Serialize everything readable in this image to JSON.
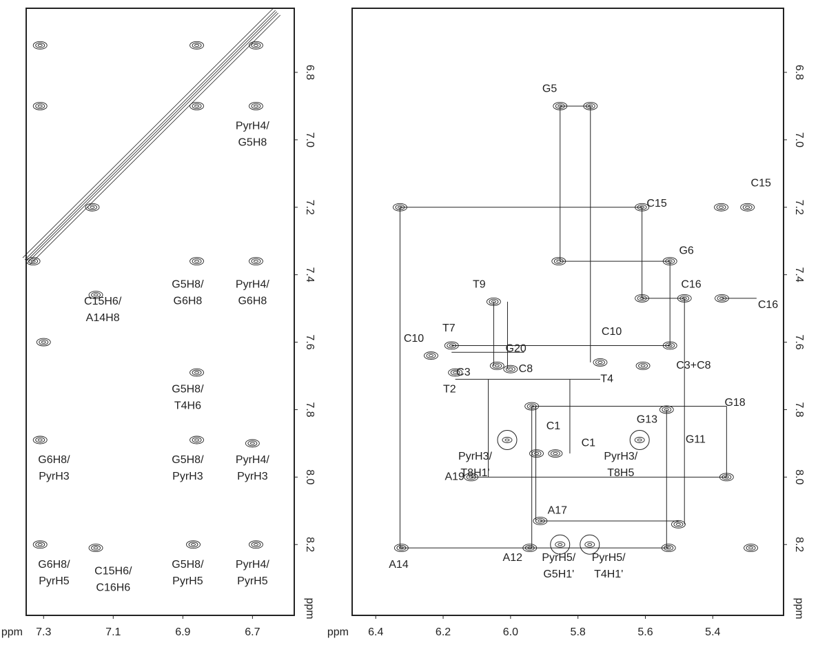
{
  "chart_data": [
    {
      "type": "scatter",
      "xlabel": "ppm",
      "ylabel": "ppm",
      "xlim": [
        7.35,
        6.58
      ],
      "ylim": [
        8.41,
        6.61
      ],
      "xticks": [
        7.3,
        7.1,
        6.9,
        6.7
      ],
      "yticks": [
        6.8,
        {
          "value": 7,
          "label": "7.0"
        },
        7.2,
        7.4,
        7.6,
        7.8,
        {
          "value": 8,
          "label": "8.0"
        },
        8.2
      ],
      "diagonal": {
        "x": [
          7.35,
          6.63
        ],
        "y": [
          7.36,
          6.62
        ]
      },
      "x": [
        7.31,
        7.31,
        6.86,
        6.69,
        6.69,
        6.86,
        6.69,
        7.15,
        7.3,
        6.86,
        6.86,
        6.7,
        7.31,
        7.31,
        7.15,
        6.87,
        6.69,
        6.86,
        7.16,
        7.33
      ],
      "y": [
        6.72,
        6.9,
        6.72,
        6.72,
        6.9,
        7.36,
        7.36,
        7.46,
        7.6,
        7.69,
        7.89,
        7.9,
        7.89,
        8.2,
        8.21,
        8.2,
        8.2,
        6.9,
        7.2,
        7.36
      ],
      "annotations": [
        {
          "text": [
            "PyrH4/",
            "G5H8"
          ],
          "x": 6.7,
          "y": 6.96
        },
        {
          "text": [
            "G5H8/",
            "G6H8"
          ],
          "x": 6.886,
          "y": 7.43
        },
        {
          "text": [
            "PyrH4/",
            "G6H8"
          ],
          "x": 6.7,
          "y": 7.43
        },
        {
          "text": [
            "C15H6/",
            "A14H8"
          ],
          "x": 7.13,
          "y": 7.48
        },
        {
          "text": [
            "G5H8/",
            "T4H6"
          ],
          "x": 6.886,
          "y": 7.74
        },
        {
          "text": [
            "G6H8/",
            "PyrH3"
          ],
          "x": 7.27,
          "y": 7.95
        },
        {
          "text": [
            "G5H8/",
            "PyrH3"
          ],
          "x": 6.886,
          "y": 7.95
        },
        {
          "text": [
            "PyrH4/",
            "PyrH3"
          ],
          "x": 6.7,
          "y": 7.95
        },
        {
          "text": [
            "G6H8/",
            "PyrH5"
          ],
          "x": 7.27,
          "y": 8.26
        },
        {
          "text": [
            "C15H6/",
            "C16H6"
          ],
          "x": 7.1,
          "y": 8.28
        },
        {
          "text": [
            "G5H8/",
            "PyrH5"
          ],
          "x": 6.886,
          "y": 8.26
        },
        {
          "text": [
            "PyrH4/",
            "PyrH5"
          ],
          "x": 6.7,
          "y": 8.26
        }
      ]
    },
    {
      "type": "scatter",
      "xlabel": "ppm",
      "ylabel": "ppm",
      "xlim": [
        6.47,
        5.19
      ],
      "ylim": [
        8.41,
        6.61
      ],
      "xticks": [
        6.4,
        6.2,
        {
          "value": 6,
          "label": "6.0"
        },
        5.8,
        5.6,
        5.4
      ],
      "yticks": [
        6.8,
        {
          "value": 7,
          "label": "7.0"
        },
        7.2,
        7.4,
        7.6,
        7.8,
        {
          "value": 8,
          "label": "8.0"
        },
        8.2
      ],
      "x": [
        5.853,
        5.763,
        6.328,
        5.61,
        5.297,
        5.375,
        5.857,
        5.527,
        6.05,
        5.61,
        5.484,
        5.373,
        6.175,
        5.527,
        6.236,
        6.164,
        6.04,
        6.0,
        5.734,
        5.607,
        5.937,
        5.537,
        5.867,
        5.923,
        6.117,
        5.359,
        5.912,
        5.502,
        6.324,
        5.943,
        5.531,
        5.287
      ],
      "y": [
        6.9,
        6.9,
        7.2,
        7.2,
        7.2,
        7.2,
        7.36,
        7.36,
        7.48,
        7.47,
        7.47,
        7.47,
        7.61,
        7.61,
        7.64,
        7.69,
        7.67,
        7.68,
        7.66,
        7.67,
        7.79,
        7.8,
        7.93,
        7.93,
        8.0,
        8.0,
        8.13,
        8.14,
        8.21,
        8.21,
        8.21,
        8.21
      ],
      "circles": {
        "x": [
          6.01,
          5.617,
          5.853,
          5.765
        ],
        "y": [
          7.89,
          7.89,
          8.2,
          8.2
        ]
      },
      "lines": [
        [
          5.853,
          6.9,
          5.853,
          7.36
        ],
        [
          5.853,
          6.9,
          5.763,
          6.9
        ],
        [
          5.763,
          6.9,
          5.763,
          7.66
        ],
        [
          5.853,
          7.36,
          5.527,
          7.36
        ],
        [
          5.527,
          7.36,
          5.527,
          7.61
        ],
        [
          6.328,
          7.2,
          5.61,
          7.2
        ],
        [
          6.328,
          7.2,
          6.328,
          8.21
        ],
        [
          5.61,
          7.2,
          5.61,
          7.47
        ],
        [
          5.61,
          7.47,
          5.484,
          7.47
        ],
        [
          5.373,
          7.47,
          5.27,
          7.47
        ],
        [
          5.484,
          7.47,
          5.484,
          8.14
        ],
        [
          6.328,
          8.21,
          5.531,
          8.21
        ],
        [
          6.175,
          7.61,
          5.527,
          7.61
        ],
        [
          6.05,
          7.48,
          6.05,
          7.67
        ],
        [
          6.009,
          7.48,
          6.009,
          7.68
        ],
        [
          6.175,
          7.63,
          5.96,
          7.63
        ],
        [
          6.164,
          7.71,
          5.734,
          7.71
        ],
        [
          6.066,
          7.71,
          6.066,
          8.0
        ],
        [
          6.117,
          8.0,
          5.359,
          8.0
        ],
        [
          5.359,
          7.79,
          5.359,
          8.0
        ],
        [
          5.937,
          7.79,
          5.359,
          7.79
        ],
        [
          5.937,
          7.79,
          5.937,
          8.21
        ],
        [
          5.925,
          7.79,
          5.925,
          8.13
        ],
        [
          5.912,
          8.13,
          5.502,
          8.13
        ],
        [
          5.537,
          7.8,
          5.537,
          8.21
        ],
        [
          5.824,
          7.71,
          5.824,
          7.93
        ]
      ],
      "annotations": [
        {
          "text": [
            "G5"
          ],
          "x": 5.884,
          "y": 6.85
        },
        {
          "text": [
            "C15"
          ],
          "x": 5.566,
          "y": 7.19
        },
        {
          "text": [
            "C15"
          ],
          "x": 5.257,
          "y": 7.13
        },
        {
          "text": [
            "G6"
          ],
          "x": 5.478,
          "y": 7.33
        },
        {
          "text": [
            "T9"
          ],
          "x": 6.093,
          "y": 7.43
        },
        {
          "text": [
            "C16"
          ],
          "x": 5.464,
          "y": 7.43
        },
        {
          "text": [
            "C16"
          ],
          "x": 5.236,
          "y": 7.49
        },
        {
          "text": [
            "T7"
          ],
          "x": 6.183,
          "y": 7.56
        },
        {
          "text": [
            "C10"
          ],
          "x": 6.287,
          "y": 7.59
        },
        {
          "text": [
            "C10"
          ],
          "x": 5.7,
          "y": 7.57
        },
        {
          "text": [
            "G20"
          ],
          "x": 5.984,
          "y": 7.62
        },
        {
          "text": [
            "C3"
          ],
          "x": 6.14,
          "y": 7.69
        },
        {
          "text": [
            "C8"
          ],
          "x": 5.955,
          "y": 7.68
        },
        {
          "text": [
            "C3+C8"
          ],
          "x": 5.457,
          "y": 7.67
        },
        {
          "text": [
            "T4"
          ],
          "x": 5.714,
          "y": 7.71
        },
        {
          "text": [
            "T2"
          ],
          "x": 6.181,
          "y": 7.74
        },
        {
          "text": [
            "G18"
          ],
          "x": 5.334,
          "y": 7.78
        },
        {
          "text": [
            "G13"
          ],
          "x": 5.595,
          "y": 7.83
        },
        {
          "text": [
            "C1"
          ],
          "x": 5.873,
          "y": 7.85
        },
        {
          "text": [
            "C1"
          ],
          "x": 5.769,
          "y": 7.9
        },
        {
          "text": [
            "G11"
          ],
          "x": 5.451,
          "y": 7.89
        },
        {
          "text": [
            "PyrH3/",
            "T8H1'"
          ],
          "x": 6.105,
          "y": 7.94
        },
        {
          "text": [
            "PyrH3/",
            "T8H5"
          ],
          "x": 5.673,
          "y": 7.94
        },
        {
          "text": [
            "A19"
          ],
          "x": 6.166,
          "y": 8.0
        },
        {
          "text": [
            "A17"
          ],
          "x": 5.861,
          "y": 8.1
        },
        {
          "text": [
            "A14"
          ],
          "x": 6.332,
          "y": 8.26
        },
        {
          "text": [
            "A12"
          ],
          "x": 5.994,
          "y": 8.24
        },
        {
          "text": [
            "PyrH5/",
            "G5H1'"
          ],
          "x": 5.857,
          "y": 8.24
        },
        {
          "text": [
            "PyrH5/",
            "T4H1'"
          ],
          "x": 5.709,
          "y": 8.24
        }
      ]
    }
  ]
}
